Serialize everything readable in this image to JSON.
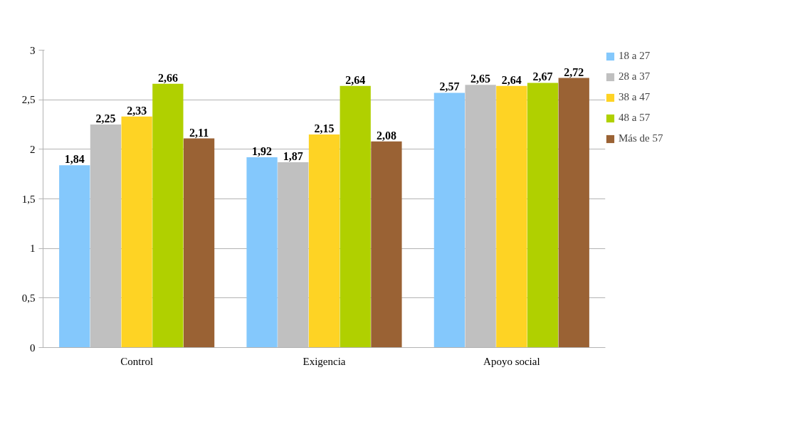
{
  "chart_data": {
    "type": "bar",
    "categories": [
      "Control",
      "Exigencia",
      "Apoyo social"
    ],
    "series": [
      {
        "name": "18 a 27",
        "color": "#84c8fc",
        "values": [
          1.84,
          1.92,
          2.57
        ],
        "value_labels": [
          "1,84",
          "1,92",
          "2,57"
        ]
      },
      {
        "name": "28 a 37",
        "color": "#c0c0c0",
        "values": [
          2.25,
          1.87,
          2.65
        ],
        "value_labels": [
          "2,25",
          "1,87",
          "2,65"
        ]
      },
      {
        "name": "38 a 47",
        "color": "#fed324",
        "values": [
          2.33,
          2.15,
          2.64
        ],
        "value_labels": [
          "2,33",
          "2,15",
          "2,64"
        ]
      },
      {
        "name": "48 a 57",
        "color": "#b0d000",
        "values": [
          2.66,
          2.64,
          2.67
        ],
        "value_labels": [
          "2,66",
          "2,64",
          "2,67"
        ]
      },
      {
        "name": "Más de 57",
        "color": "#9a6234",
        "values": [
          2.11,
          2.08,
          2.72
        ],
        "value_labels": [
          "2,11",
          "2,08",
          "2,72"
        ]
      }
    ],
    "ylim": [
      0,
      3
    ],
    "yticks": [
      0,
      {
        "value": 0.5,
        "label": "0,5"
      },
      1,
      {
        "value": 1.5,
        "label": "1,5"
      },
      2,
      {
        "value": 2.5,
        "label": "2,5"
      },
      3
    ],
    "grid": "y",
    "legend": "right"
  }
}
